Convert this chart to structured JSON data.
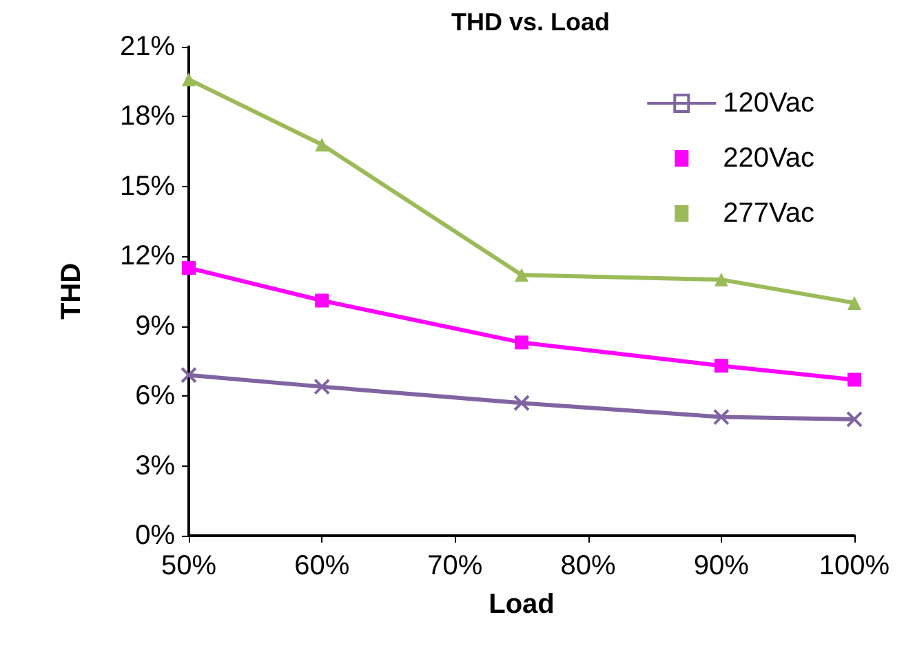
{
  "chart_data": {
    "type": "line",
    "title": "THD vs. Load",
    "xlabel": "Load",
    "ylabel": "THD",
    "x": [
      50,
      60,
      75,
      90,
      100
    ],
    "series": [
      {
        "name": "120Vac",
        "color": "#8064a2",
        "marker": "cross",
        "values": [
          6.9,
          6.4,
          5.7,
          5.1,
          5.0
        ]
      },
      {
        "name": "220Vac",
        "color": "#ff00ff",
        "marker": "square",
        "values": [
          11.5,
          10.1,
          8.3,
          7.3,
          6.7
        ]
      },
      {
        "name": "277Vac",
        "color": "#9bbb59",
        "marker": "triangle",
        "values": [
          19.6,
          16.8,
          11.2,
          11.0,
          10.0
        ]
      }
    ],
    "xlim": [
      50,
      100
    ],
    "xticks": [
      {
        "value": 50,
        "label": "50%"
      },
      {
        "value": 60,
        "label": "60%"
      },
      {
        "value": 70,
        "label": "70%"
      },
      {
        "value": 80,
        "label": "80%"
      },
      {
        "value": 90,
        "label": "90%"
      },
      {
        "value": 100,
        "label": "100%"
      }
    ],
    "ylim": [
      0,
      21
    ],
    "yticks": [
      {
        "value": 0,
        "label": "0%"
      },
      {
        "value": 3,
        "label": "3%"
      },
      {
        "value": 6,
        "label": "6%"
      },
      {
        "value": 9,
        "label": "9%"
      },
      {
        "value": 12,
        "label": "12%"
      },
      {
        "value": 15,
        "label": "15%"
      },
      {
        "value": 18,
        "label": "18%"
      },
      {
        "value": 21,
        "label": "21%"
      }
    ],
    "grid": false,
    "legend": "top right",
    "line_style": "solid"
  }
}
